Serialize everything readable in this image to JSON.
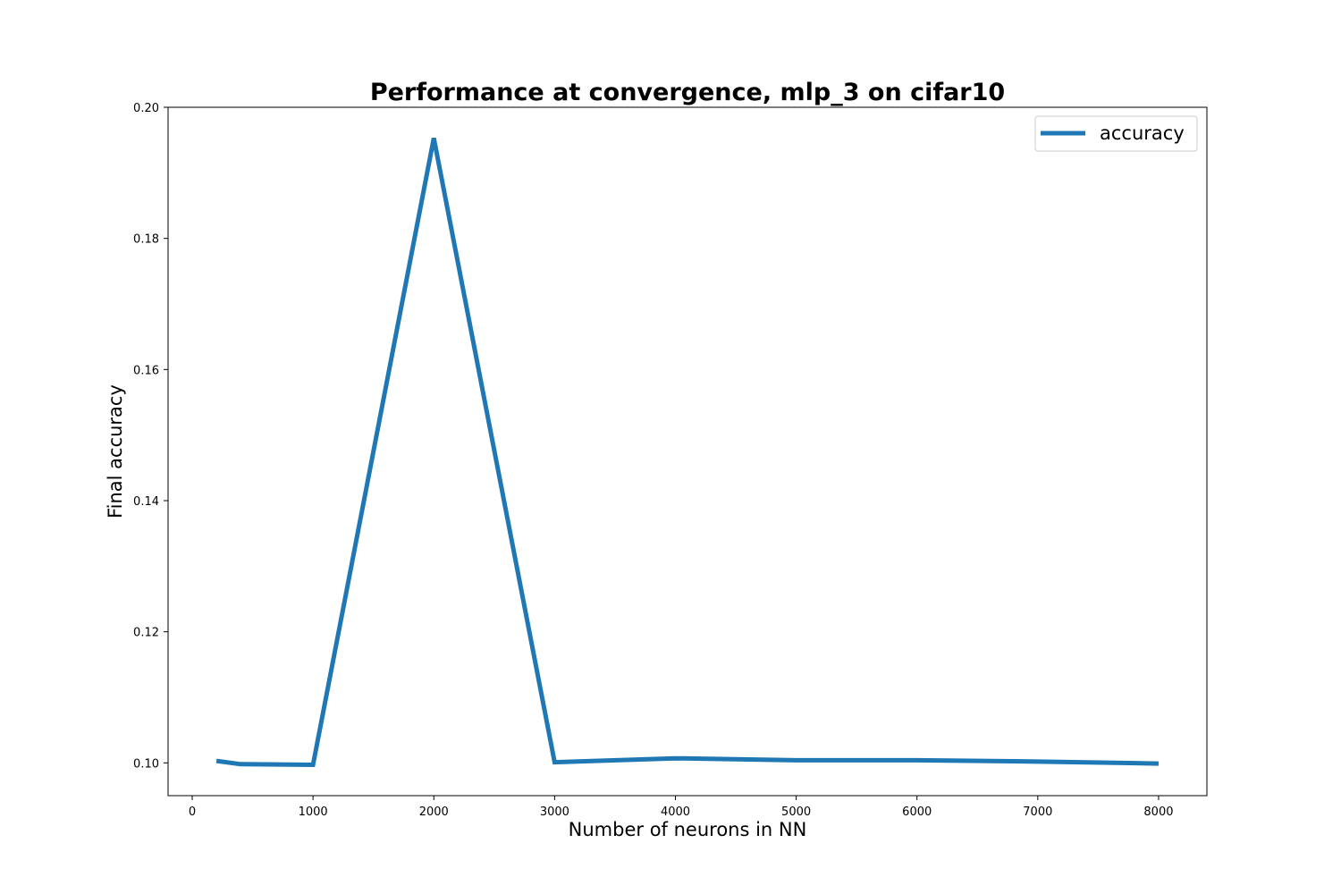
{
  "chart_data": {
    "type": "line",
    "title": "Performance at convergence, mlp_3 on cifar10",
    "xlabel": "Number of neurons in NN",
    "ylabel": "Final accuracy",
    "xlim": [
      -200,
      8400
    ],
    "ylim": [
      0.095,
      0.2
    ],
    "xticks": [
      0,
      1000,
      2000,
      3000,
      4000,
      5000,
      6000,
      7000,
      8000
    ],
    "xtick_labels": [
      "0",
      "1000",
      "2000",
      "3000",
      "4000",
      "5000",
      "6000",
      "7000",
      "8000"
    ],
    "yticks": [
      0.1,
      0.12,
      0.14,
      0.16,
      0.18,
      0.2
    ],
    "ytick_labels": [
      "0.10",
      "0.12",
      "0.14",
      "0.16",
      "0.18",
      "0.20"
    ],
    "grid": false,
    "legend_position": "top-right",
    "series": [
      {
        "name": "accuracy",
        "color": "#1f77b4",
        "x": [
          200,
          400,
          1000,
          2000,
          3000,
          4000,
          5000,
          6000,
          7000,
          8000
        ],
        "y": [
          0.1003,
          0.0998,
          0.0997,
          0.1953,
          0.1001,
          0.1007,
          0.1004,
          0.1004,
          0.1002,
          0.0999
        ]
      }
    ]
  }
}
